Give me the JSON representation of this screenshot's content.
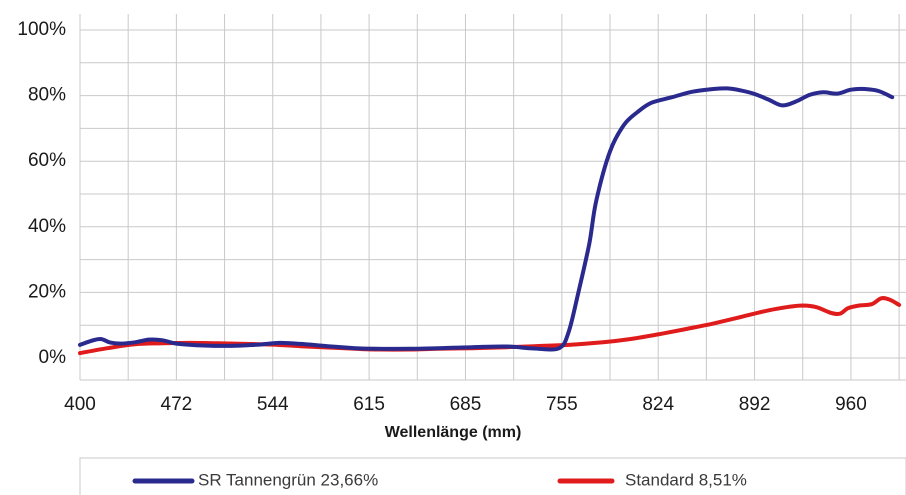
{
  "chart_data": {
    "type": "line",
    "title": "",
    "xlabel": "Wellenlänge (mm)",
    "ylabel": "",
    "x_ticks": [
      "400",
      "472",
      "544",
      "615",
      "685",
      "755",
      "824",
      "892",
      "960"
    ],
    "y_ticks": [
      "0%",
      "20%",
      "40%",
      "60%",
      "80%",
      "100%"
    ],
    "xlim": [
      400,
      1000
    ],
    "ylim": [
      0,
      100
    ],
    "grid": true,
    "legend_position": "bottom",
    "series": [
      {
        "name": "SR Tannengrün 23,66%",
        "color": "#2a2a8e",
        "points": [
          [
            400,
            4
          ],
          [
            408,
            5.2
          ],
          [
            415,
            5.8
          ],
          [
            422,
            4.7
          ],
          [
            430,
            4.4
          ],
          [
            440,
            4.8
          ],
          [
            450,
            5.6
          ],
          [
            460,
            5.4
          ],
          [
            470,
            4.4
          ],
          [
            490,
            3.8
          ],
          [
            510,
            3.7
          ],
          [
            530,
            4.1
          ],
          [
            545,
            4.6
          ],
          [
            560,
            4.3
          ],
          [
            580,
            3.6
          ],
          [
            600,
            3
          ],
          [
            615,
            2.8
          ],
          [
            640,
            2.8
          ],
          [
            660,
            3
          ],
          [
            685,
            3.3
          ],
          [
            710,
            3.5
          ],
          [
            730,
            2.9
          ],
          [
            748,
            3
          ],
          [
            755,
            8
          ],
          [
            762,
            20
          ],
          [
            770,
            35
          ],
          [
            775,
            48
          ],
          [
            785,
            63
          ],
          [
            795,
            71
          ],
          [
            805,
            75
          ],
          [
            815,
            77.8
          ],
          [
            830,
            79.5
          ],
          [
            845,
            81.2
          ],
          [
            860,
            82
          ],
          [
            870,
            82.2
          ],
          [
            880,
            81.6
          ],
          [
            890,
            80.5
          ],
          [
            900,
            78.8
          ],
          [
            910,
            77
          ],
          [
            920,
            78.2
          ],
          [
            930,
            80.2
          ],
          [
            940,
            81
          ],
          [
            950,
            80.6
          ],
          [
            960,
            81.8
          ],
          [
            970,
            82
          ],
          [
            980,
            81.4
          ],
          [
            990,
            79.5
          ]
        ]
      },
      {
        "name": "Standard 8,51%",
        "color": "#e01b1b",
        "points": [
          [
            400,
            1.5
          ],
          [
            420,
            3
          ],
          [
            440,
            4.2
          ],
          [
            460,
            4.5
          ],
          [
            480,
            4.6
          ],
          [
            500,
            4.5
          ],
          [
            520,
            4.3
          ],
          [
            540,
            4.1
          ],
          [
            560,
            3.6
          ],
          [
            580,
            3.2
          ],
          [
            600,
            2.8
          ],
          [
            615,
            2.6
          ],
          [
            640,
            2.6
          ],
          [
            660,
            2.8
          ],
          [
            685,
            3
          ],
          [
            710,
            3.3
          ],
          [
            730,
            3.6
          ],
          [
            755,
            4
          ],
          [
            780,
            4.8
          ],
          [
            800,
            5.8
          ],
          [
            820,
            7.2
          ],
          [
            840,
            8.8
          ],
          [
            860,
            10.5
          ],
          [
            880,
            12.5
          ],
          [
            900,
            14.5
          ],
          [
            915,
            15.6
          ],
          [
            925,
            16
          ],
          [
            935,
            15.5
          ],
          [
            945,
            13.8
          ],
          [
            952,
            13.5
          ],
          [
            958,
            15.2
          ],
          [
            966,
            16
          ],
          [
            975,
            16.4
          ],
          [
            982,
            18.2
          ],
          [
            988,
            17.8
          ],
          [
            995,
            16.2
          ]
        ]
      }
    ]
  }
}
